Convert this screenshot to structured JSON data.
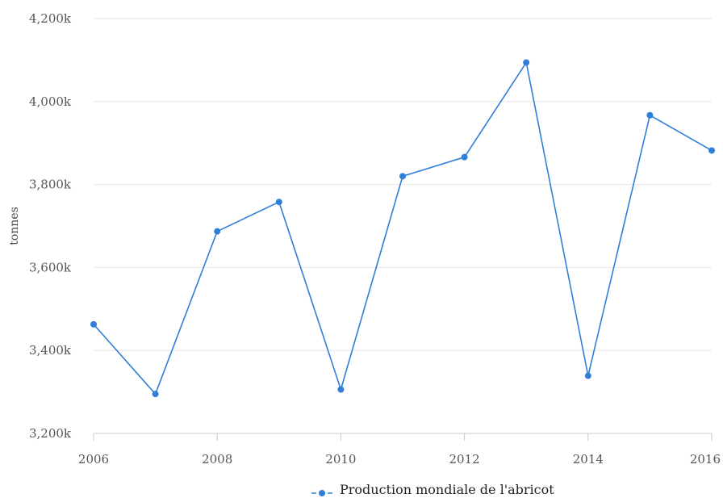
{
  "chart_data": {
    "type": "line",
    "title": "",
    "xlabel": "",
    "ylabel": "tonnes",
    "x": [
      2006,
      2007,
      2008,
      2009,
      2010,
      2011,
      2012,
      2013,
      2014,
      2015,
      2016
    ],
    "series": [
      {
        "name": "Production mondiale de l'abricot",
        "color": "#2f7ed8",
        "values": [
          3463,
          3295,
          3687,
          3758,
          3306,
          3820,
          3866,
          4094,
          3339,
          3967,
          3882
        ]
      }
    ],
    "xlim": [
      2006,
      2016
    ],
    "ylim": [
      3200,
      4200
    ],
    "x_ticks": [
      2006,
      2008,
      2010,
      2012,
      2014,
      2016
    ],
    "x_tick_labels": [
      "2006",
      "2008",
      "2010",
      "2012",
      "2014",
      "2016"
    ],
    "y_ticks": [
      3200,
      3400,
      3600,
      3800,
      4000,
      4200
    ],
    "y_tick_labels": [
      "3,200k",
      "3,400k",
      "3,600k",
      "3,800k",
      "4,000k",
      "4,200k"
    ],
    "y_unit_suffix": "k",
    "grid": true,
    "legend": "bottom-center"
  }
}
